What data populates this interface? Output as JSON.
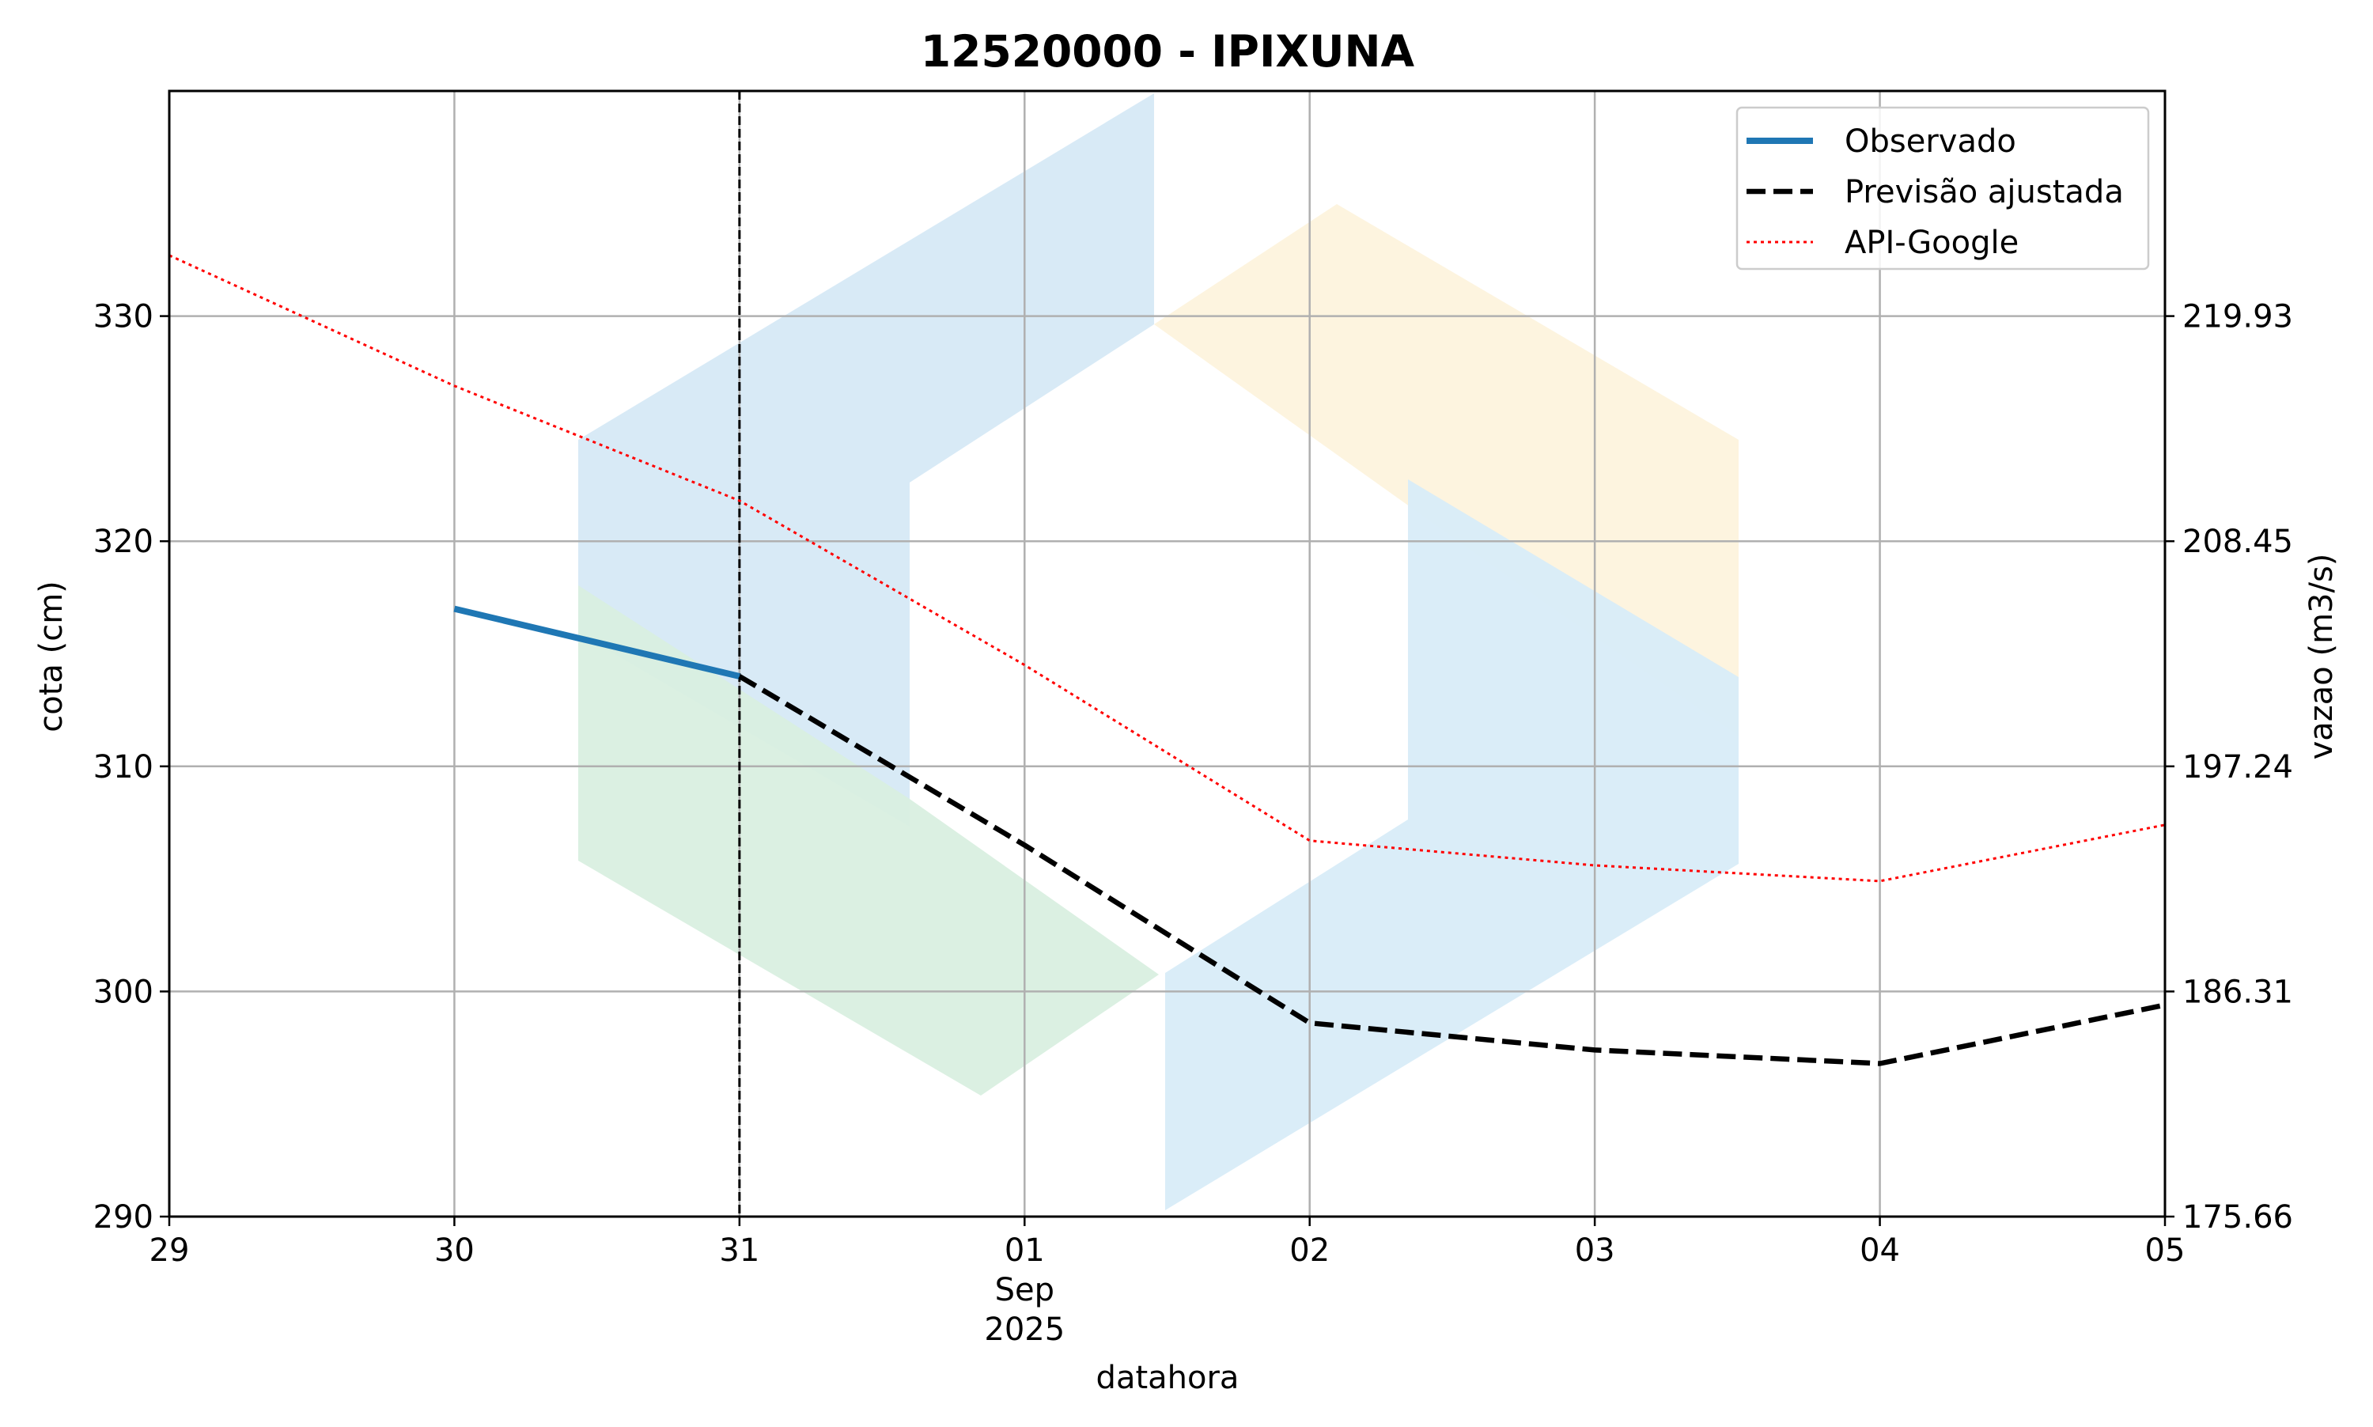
{
  "chart_data": {
    "type": "line",
    "title": "12520000 - IPIXUNA",
    "xlabel": "datahora",
    "ylabel_left": "cota (cm)",
    "ylabel_right": "vazao (m3/s)",
    "x_range": [
      "2025-08-29",
      "2025-09-05"
    ],
    "ylim_left": [
      290,
      340
    ],
    "x_ticks": [
      {
        "date": "2025-08-29",
        "label": "29"
      },
      {
        "date": "2025-08-30",
        "label": "30"
      },
      {
        "date": "2025-08-31",
        "label": "31"
      },
      {
        "date": "2025-09-01",
        "label": "01"
      },
      {
        "date": "2025-09-02",
        "label": "02"
      },
      {
        "date": "2025-09-03",
        "label": "03"
      },
      {
        "date": "2025-09-04",
        "label": "04"
      },
      {
        "date": "2025-09-05",
        "label": "05"
      }
    ],
    "x_tick_sublabels": [
      "Sep",
      "2025"
    ],
    "y_ticks_left": [
      290,
      300,
      310,
      320,
      330
    ],
    "y_ticks_right": [
      {
        "cota": 290,
        "label": "175.66"
      },
      {
        "cota": 300,
        "label": "186.31"
      },
      {
        "cota": 310,
        "label": "197.24"
      },
      {
        "cota": 320,
        "label": "208.45"
      },
      {
        "cota": 330,
        "label": "219.93"
      }
    ],
    "grid": true,
    "vertical_marker_date": "2025-08-31",
    "legend_position": "top-right",
    "series": [
      {
        "name": "Observado",
        "color": "#1f77b4",
        "style": "solid",
        "x": [
          "2025-08-30",
          "2025-08-31"
        ],
        "y": [
          317.0,
          314.0
        ]
      },
      {
        "name": "Previsão ajustada",
        "color": "#000000",
        "style": "dashed",
        "x": [
          "2025-08-31",
          "2025-09-01",
          "2025-09-02",
          "2025-09-03",
          "2025-09-04",
          "2025-09-05"
        ],
        "y": [
          314.0,
          306.5,
          298.6,
          297.4,
          296.8,
          299.4
        ]
      },
      {
        "name": "API-Google",
        "color": "#ff0000",
        "style": "dotted",
        "x": [
          "2025-08-29",
          "2025-08-30",
          "2025-08-31",
          "2025-09-01",
          "2025-09-02",
          "2025-09-03",
          "2025-09-04",
          "2025-09-05"
        ],
        "y": [
          332.7,
          326.9,
          321.8,
          314.5,
          306.7,
          305.6,
          304.9,
          307.4
        ]
      }
    ],
    "watermark_colors": [
      "#d6e9f6",
      "#d9efe0",
      "#fdf3dd",
      "#d8ecf8"
    ]
  }
}
